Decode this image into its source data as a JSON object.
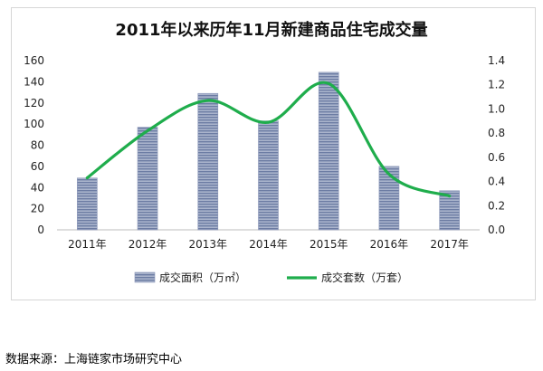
{
  "chart_data": {
    "type": "bar",
    "title": "2011年以来历年11月新建商品住宅成交量",
    "categories": [
      "2011年",
      "2012年",
      "2013年",
      "2014年",
      "2015年",
      "2016年",
      "2017年"
    ],
    "series": [
      {
        "name": "成交面积（万㎡）",
        "type": "bar",
        "axis": "left",
        "values": [
          49,
          97,
          129,
          103,
          149,
          60,
          37
        ],
        "color": "#7f8fb3"
      },
      {
        "name": "成交套数（万套）",
        "type": "line",
        "axis": "right",
        "smooth": true,
        "values": [
          0.43,
          0.82,
          1.07,
          0.89,
          1.21,
          0.46,
          0.28
        ],
        "color": "#1fad4c"
      }
    ],
    "y_left": {
      "ticks": [
        "0",
        "20",
        "40",
        "60",
        "80",
        "100",
        "120",
        "140",
        "160"
      ],
      "ylim": [
        0,
        160
      ]
    },
    "y_right": {
      "ticks": [
        "0.0",
        "0.2",
        "0.4",
        "0.6",
        "0.8",
        "1.0",
        "1.2",
        "1.4"
      ],
      "ylim": [
        0,
        1.4
      ]
    },
    "grid": false,
    "legend_position": "bottom"
  },
  "source_text": "数据来源：上海链家市场研究中心"
}
